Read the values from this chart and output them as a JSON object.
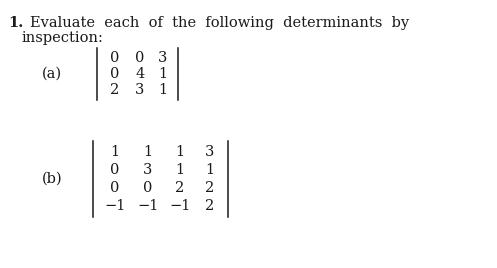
{
  "background_color": "#ffffff",
  "text_color": "#1a1a1a",
  "font_size": 10.5,
  "part_a_matrix": [
    [
      "0",
      "0",
      "3"
    ],
    [
      "0",
      "4",
      "1"
    ],
    [
      "2",
      "3",
      "1"
    ]
  ],
  "part_b_matrix": [
    [
      "1",
      "1",
      "1",
      "3"
    ],
    [
      "0",
      "3",
      "1",
      "1"
    ],
    [
      "0",
      "0",
      "2",
      "2"
    ],
    [
      "−1",
      "−1",
      "−1",
      "2"
    ]
  ],
  "title_number": "1.",
  "title_rest": "Evaluate  each  of  the  following  determinants  by",
  "title_line2": "inspection:",
  "label_a": "(a)",
  "label_b": "(b)"
}
